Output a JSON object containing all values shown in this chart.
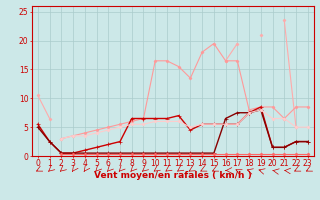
{
  "x": [
    0,
    1,
    2,
    3,
    4,
    5,
    6,
    7,
    8,
    9,
    10,
    11,
    12,
    13,
    14,
    15,
    16,
    17,
    18,
    19,
    20,
    21,
    22,
    23
  ],
  "line_styles": [
    {
      "color": "#ffaaaa",
      "lw": 0.8,
      "marker": "D",
      "ms": 1.5,
      "values": [
        10.5,
        6.5,
        null,
        null,
        null,
        null,
        null,
        null,
        null,
        null,
        null,
        null,
        null,
        null,
        null,
        null,
        16.5,
        19.5,
        null,
        21.0,
        null,
        23.5,
        5.0,
        null
      ]
    },
    {
      "color": "#ff9999",
      "lw": 0.8,
      "marker": "D",
      "ms": 1.5,
      "values": [
        null,
        null,
        3.0,
        3.5,
        4.0,
        4.5,
        5.0,
        5.5,
        6.0,
        6.5,
        16.5,
        16.5,
        15.5,
        13.5,
        18.0,
        19.5,
        16.5,
        16.5,
        8.0,
        8.5,
        8.5,
        6.5,
        8.5,
        8.5
      ]
    },
    {
      "color": "#cc0000",
      "lw": 1.0,
      "marker": "+",
      "ms": 3.0,
      "values": [
        5.5,
        2.5,
        0.5,
        0.5,
        1.0,
        1.5,
        2.0,
        2.5,
        6.5,
        6.5,
        6.5,
        6.5,
        7.0,
        4.5,
        5.5,
        5.5,
        5.5,
        5.5,
        7.5,
        8.5,
        1.5,
        1.5,
        2.5,
        2.5
      ]
    },
    {
      "color": "#880000",
      "lw": 1.0,
      "marker": "+",
      "ms": 3.0,
      "values": [
        5.0,
        2.5,
        0.5,
        0.5,
        0.5,
        0.5,
        0.5,
        0.5,
        0.5,
        0.5,
        0.5,
        0.5,
        0.5,
        0.5,
        0.5,
        0.5,
        6.5,
        7.5,
        7.5,
        8.0,
        1.5,
        1.5,
        2.5,
        2.5
      ]
    },
    {
      "color": "#ffcccc",
      "lw": 0.8,
      "marker": "D",
      "ms": 1.5,
      "values": [
        null,
        null,
        3.0,
        3.5,
        3.5,
        4.0,
        4.5,
        5.0,
        5.5,
        5.5,
        6.0,
        6.0,
        6.0,
        5.0,
        5.5,
        5.5,
        5.5,
        5.5,
        7.5,
        8.0,
        6.5,
        6.5,
        5.0,
        5.0
      ]
    },
    {
      "color": "#ff6666",
      "lw": 0.8,
      "marker": "D",
      "ms": 1.5,
      "values": [
        null,
        null,
        0.3,
        0.3,
        0.3,
        0.3,
        0.3,
        0.3,
        0.3,
        0.3,
        0.3,
        0.3,
        0.3,
        0.3,
        0.3,
        0.3,
        0.3,
        0.3,
        0.3,
        0.3,
        0.3,
        0.3,
        0.3,
        0.3
      ]
    }
  ],
  "xlabel": "Vent moyen/en rafales ( km/h )",
  "ylim": [
    0,
    26
  ],
  "xlim": [
    -0.5,
    23.5
  ],
  "yticks": [
    0,
    5,
    10,
    15,
    20,
    25
  ],
  "xticks": [
    0,
    1,
    2,
    3,
    4,
    5,
    6,
    7,
    8,
    9,
    10,
    11,
    12,
    13,
    14,
    15,
    16,
    17,
    18,
    19,
    20,
    21,
    22,
    23
  ],
  "bg_color": "#cce8e8",
  "grid_color": "#aacccc",
  "xlabel_color": "#cc0000",
  "xlabel_fontsize": 6.5,
  "tick_fontsize": 5.5,
  "arrow_angles": [
    225,
    210,
    210,
    200,
    200,
    205,
    205,
    205,
    205,
    210,
    215,
    215,
    215,
    220,
    225,
    225,
    270,
    315,
    300,
    300,
    290,
    280,
    225,
    225
  ]
}
